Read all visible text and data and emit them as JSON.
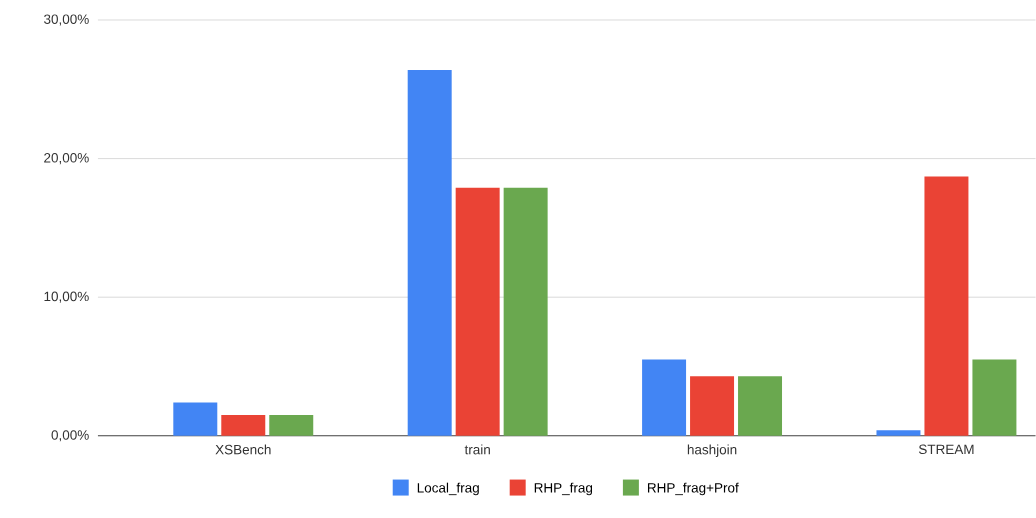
{
  "chart_data": {
    "type": "bar",
    "categories": [
      "XSBench",
      "train",
      "hashjoin",
      "STREAM"
    ],
    "series": [
      {
        "name": "Local_frag",
        "color": "#4285f4",
        "values": [
          2.4,
          26.4,
          5.5,
          0.4
        ]
      },
      {
        "name": "RHP_frag",
        "color": "#ea4335",
        "values": [
          1.5,
          17.9,
          4.3,
          18.7
        ]
      },
      {
        "name": "RHP_frag+Prof",
        "color": "#6aa84f",
        "values": [
          1.5,
          17.9,
          4.3,
          5.5
        ]
      }
    ],
    "ylim": [
      0,
      30
    ],
    "yticks": [
      {
        "value": 0,
        "label": "0,00%"
      },
      {
        "value": 10,
        "label": "10,00%"
      },
      {
        "value": 20,
        "label": "20,00%"
      },
      {
        "value": 30,
        "label": "30,00%"
      }
    ],
    "grid": "y",
    "legend": "bottom"
  }
}
